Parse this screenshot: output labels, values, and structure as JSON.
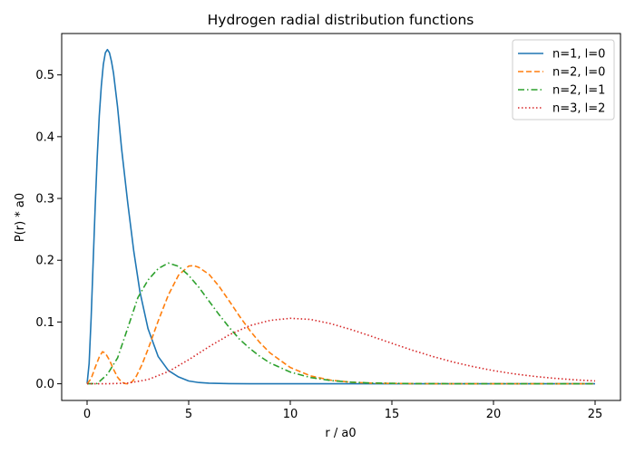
{
  "chart_data": {
    "type": "line",
    "title": "Hydrogen radial distribution functions",
    "xlabel": "r / a0",
    "ylabel": "P(r) * a0",
    "xlim": [
      -1.25,
      26.25
    ],
    "ylim": [
      -0.027,
      0.567
    ],
    "xticks": [
      0,
      5,
      10,
      15,
      20,
      25
    ],
    "xtick_labels": [
      "0",
      "5",
      "10",
      "15",
      "20",
      "25"
    ],
    "yticks": [
      0.0,
      0.1,
      0.2,
      0.3,
      0.4,
      0.5
    ],
    "ytick_labels": [
      "0.0",
      "0.1",
      "0.2",
      "0.3",
      "0.4",
      "0.5"
    ],
    "grid": false,
    "legend_position": "top-right",
    "series": [
      {
        "name": "n=1, l=0",
        "color": "#1f77b4",
        "dash": "solid",
        "x": [
          0,
          0.1,
          0.2,
          0.3,
          0.4,
          0.5,
          0.6,
          0.7,
          0.8,
          0.9,
          1.0,
          1.1,
          1.2,
          1.3,
          1.5,
          1.7,
          2.0,
          2.3,
          2.6,
          3.0,
          3.5,
          4.0,
          4.5,
          5.0,
          5.5,
          6.0,
          7.0,
          8.0,
          10.0,
          12.0,
          15.0,
          20.0,
          25.0
        ],
        "y": [
          0,
          0.0327,
          0.107,
          0.198,
          0.288,
          0.368,
          0.434,
          0.482,
          0.517,
          0.536,
          0.541,
          0.536,
          0.522,
          0.503,
          0.448,
          0.38,
          0.293,
          0.214,
          0.149,
          0.089,
          0.044,
          0.0215,
          0.0111,
          0.0045,
          0.002,
          0.0009,
          0.0002,
          0.0,
          0.0,
          0.0,
          0.0,
          0.0,
          0.0
        ]
      },
      {
        "name": "n=2, l=0",
        "color": "#ff7f0e",
        "dash": "dashed",
        "x": [
          0,
          0.2,
          0.4,
          0.6,
          0.76,
          0.9,
          1.1,
          1.3,
          1.5,
          1.7,
          1.9,
          2.0,
          2.2,
          2.4,
          2.7,
          3.0,
          3.5,
          4.0,
          4.5,
          5.0,
          5.24,
          5.5,
          6.0,
          6.5,
          7.0,
          7.5,
          8.0,
          8.5,
          9.0,
          10.0,
          11.0,
          12.0,
          13.0,
          14.0,
          16.0,
          18.0,
          20.0,
          25.0
        ],
        "y": [
          0,
          0.0084,
          0.0266,
          0.0434,
          0.0519,
          0.0495,
          0.0384,
          0.0235,
          0.0106,
          0.0026,
          0.00014,
          0.0,
          0.0027,
          0.0107,
          0.0309,
          0.056,
          0.1017,
          0.1438,
          0.1758,
          0.1905,
          0.1913,
          0.1884,
          0.1772,
          0.1575,
          0.1338,
          0.1094,
          0.0867,
          0.0667,
          0.05,
          0.0263,
          0.0127,
          0.0058,
          0.0025,
          0.001,
          0.0002,
          0.0,
          0.0,
          0.0
        ]
      },
      {
        "name": "n=2, l=1",
        "color": "#2ca02c",
        "dash": "dashdot",
        "x": [
          0,
          0.5,
          1.0,
          1.5,
          2.0,
          2.5,
          3.0,
          3.5,
          4.0,
          4.5,
          5.0,
          5.5,
          6.0,
          6.5,
          7.0,
          7.5,
          8.0,
          8.5,
          9.0,
          10.0,
          11.0,
          12.0,
          13.0,
          14.0,
          16.0,
          18.0,
          20.0,
          25.0
        ],
        "y": [
          0,
          0.0004,
          0.0153,
          0.0418,
          0.0902,
          0.1395,
          0.168,
          0.1864,
          0.1954,
          0.1902,
          0.1755,
          0.1562,
          0.1339,
          0.1117,
          0.091,
          0.0722,
          0.0573,
          0.0445,
          0.0337,
          0.0189,
          0.0101,
          0.0052,
          0.0026,
          0.0012,
          0.0003,
          0.0001,
          0.0,
          0.0
        ]
      },
      {
        "name": "n=3, l=2",
        "color": "#d62728",
        "dash": "dotted",
        "x": [
          0,
          1,
          2,
          3,
          4,
          5,
          6,
          7,
          8,
          9,
          10,
          11,
          12,
          13,
          14,
          15,
          16,
          17,
          18,
          19,
          20,
          21,
          22,
          23,
          24,
          25
        ],
        "y": [
          0,
          0.0,
          0.0011,
          0.0068,
          0.0198,
          0.0389,
          0.06,
          0.0793,
          0.094,
          0.1026,
          0.106,
          0.1042,
          0.0972,
          0.0877,
          0.0768,
          0.0655,
          0.0544,
          0.0443,
          0.0353,
          0.0277,
          0.0213,
          0.0161,
          0.012,
          0.0089,
          0.0064,
          0.0046
        ]
      }
    ]
  }
}
